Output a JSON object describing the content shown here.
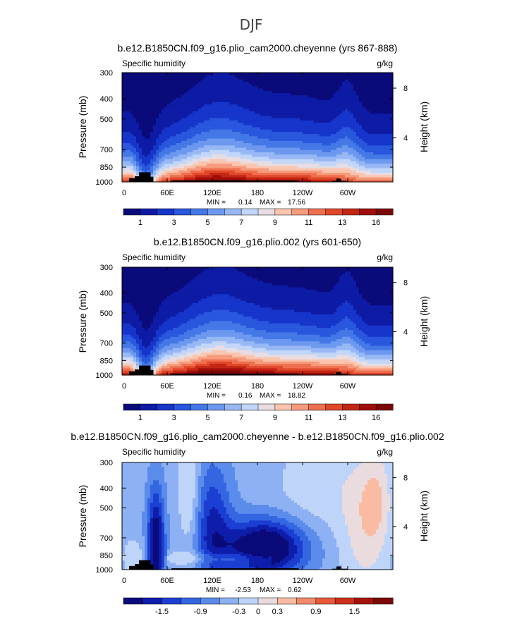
{
  "figure": {
    "title": "DJF",
    "colors": {
      "ramp12": [
        "#0a0a7a",
        "#0d1ca8",
        "#1739cf",
        "#2e5ee0",
        "#4d82ea",
        "#7ca4f1",
        "#a9c6f6",
        "#d6e4fb",
        "#fbd6c5",
        "#f8ab8d",
        "#f17c5c",
        "#e6502f",
        "#c92915",
        "#a30f0b",
        "#7d0707"
      ],
      "land": "#000000"
    }
  },
  "chart_data": [
    {
      "type": "heatmap",
      "title": "b.e12.B1850CN.f09_g16.plio_cam2000.cheyenne (yrs 867-888)",
      "left_label": "Specific humidity",
      "right_label": "g/kg",
      "ylabel": "Pressure (mb)",
      "y2label": "Height (km)",
      "yticks": [
        "300",
        "400",
        "500",
        "700",
        "850",
        "1000"
      ],
      "y2ticks": [
        "8",
        "4"
      ],
      "xticks": [
        "0",
        "60E",
        "120E",
        "180",
        "120W",
        "60W"
      ],
      "stats": {
        "min_label": "MIN =",
        "min": "0.14",
        "max_label": "MAX =",
        "max": "17.56"
      },
      "colorbar": {
        "labels": [
          "1",
          "3",
          "5",
          "7",
          "9",
          "11",
          "13",
          "16"
        ],
        "range": [
          0,
          17
        ],
        "ncolors": 16
      },
      "field": "absolute"
    },
    {
      "type": "heatmap",
      "title": "b.e12.B1850CN.f09_g16.plio.002 (yrs 601-650)",
      "left_label": "Specific humidity",
      "right_label": "g/kg",
      "ylabel": "Pressure (mb)",
      "y2label": "Height (km)",
      "yticks": [
        "300",
        "400",
        "500",
        "700",
        "850",
        "1000"
      ],
      "y2ticks": [
        "8",
        "4"
      ],
      "xticks": [
        "0",
        "60E",
        "120E",
        "180",
        "120W",
        "60W"
      ],
      "stats": {
        "min_label": "MIN =",
        "min": "0.16",
        "max_label": "MAX =",
        "max": "18.82"
      },
      "colorbar": {
        "labels": [
          "1",
          "3",
          "5",
          "7",
          "9",
          "11",
          "13",
          "16"
        ],
        "range": [
          0,
          17
        ],
        "ncolors": 16
      },
      "field": "absolute"
    },
    {
      "type": "heatmap",
      "title": "b.e12.B1850CN.f09_g16.plio_cam2000.cheyenne - b.e12.B1850CN.f09_g16.plio.002",
      "left_label": "Specific humidity",
      "right_label": "g/kg",
      "ylabel": "Pressure (mb)",
      "y2label": "Height (km)",
      "yticks": [
        "300",
        "400",
        "500",
        "700",
        "850",
        "1000"
      ],
      "y2ticks": [
        "8",
        "4"
      ],
      "xticks": [
        "0",
        "60E",
        "120E",
        "180",
        "120W",
        "60W"
      ],
      "stats": {
        "min_label": "MIN =",
        "min": "-2.53",
        "max_label": "MAX =",
        "max": "0.62"
      },
      "colorbar": {
        "labels": [
          "-1.5",
          "-0.9",
          "-0.3",
          "0",
          "0.3",
          "0.9",
          "1.5"
        ],
        "range": [
          -2,
          2
        ],
        "ncolors": 14
      },
      "field": "difference"
    }
  ]
}
